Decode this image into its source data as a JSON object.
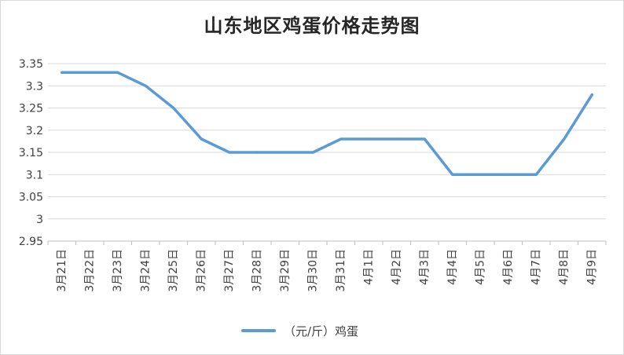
{
  "chart_data": {
    "type": "line",
    "title": "山东地区鸡蛋价格走势图",
    "xlabel": "",
    "ylabel": "",
    "categories": [
      "3月21日",
      "3月22日",
      "3月23日",
      "3月24日",
      "3月25日",
      "3月26日",
      "3月27日",
      "3月28日",
      "3月29日",
      "3月30日",
      "3月31日",
      "4月1日",
      "4月2日",
      "4月3日",
      "4月4日",
      "4月5日",
      "4月6日",
      "4月7日",
      "4月8日",
      "4月9日"
    ],
    "series": [
      {
        "name": "（元/斤）鸡蛋",
        "color": "#5B9BD5",
        "values": [
          3.33,
          3.33,
          3.33,
          3.3,
          3.25,
          3.18,
          3.15,
          3.15,
          3.15,
          3.15,
          3.18,
          3.18,
          3.18,
          3.18,
          3.1,
          3.1,
          3.1,
          3.1,
          3.18,
          3.28
        ]
      }
    ],
    "ylim": [
      2.95,
      3.35
    ],
    "yticks": [
      "3.35",
      "3.3",
      "3.25",
      "3.2",
      "3.15",
      "3.1",
      "3.05",
      "3",
      "2.95"
    ],
    "grid": true,
    "legend_position": "bottom"
  }
}
